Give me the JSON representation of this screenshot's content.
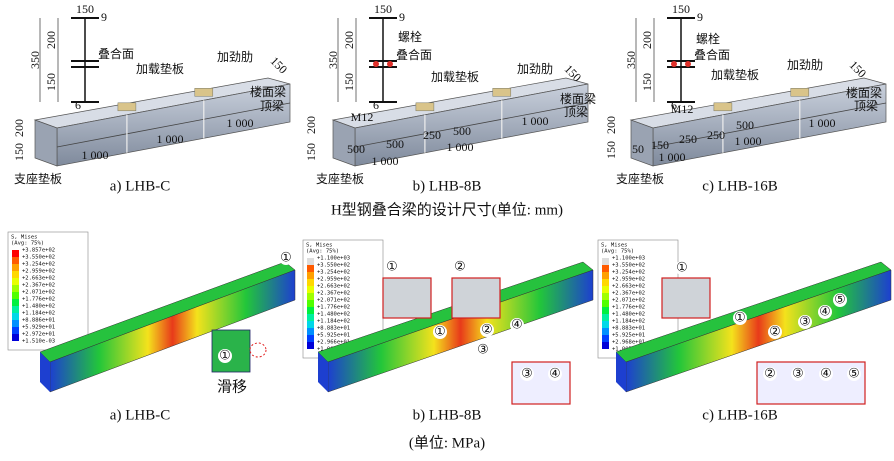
{
  "design_figure": {
    "panels": [
      {
        "label": "a) LHB-C",
        "annotations": [
          "150",
          "9",
          "350",
          "200",
          "150",
          "6",
          "叠合面",
          "加载垫板",
          "加劲肋",
          "150",
          "楼面梁",
          "顶梁",
          "1 000",
          "1 000",
          "1 000",
          "200",
          "150",
          "支座垫板"
        ]
      },
      {
        "label": "b) LHB-8B",
        "annotations": [
          "150",
          "9",
          "350",
          "200",
          "150",
          "6",
          "螺栓",
          "叠合面",
          "加载垫板",
          "加劲肋",
          "150",
          "楼面梁",
          "顶梁",
          "M12",
          "500",
          "500",
          "250",
          "500",
          "1 000",
          "1 000",
          "1 000",
          "200",
          "150",
          "支座垫板"
        ]
      },
      {
        "label": "c) LHB-16B",
        "annotations": [
          "150",
          "9",
          "350",
          "200",
          "150",
          "6",
          "螺栓",
          "叠合面",
          "加载垫板",
          "加劲肋",
          "150",
          "楼面梁",
          "顶梁",
          "M12",
          "50",
          "150",
          "250",
          "250",
          "500",
          "1 000",
          "1 000",
          "1 000",
          "200",
          "150",
          "支座垫板"
        ]
      }
    ],
    "caption": "H型钢叠合梁的设计尺寸(单位: mm)"
  },
  "stress_figure": {
    "panels": [
      {
        "label": "a) LHB-C",
        "legend": {
          "title": "S, Mises",
          "subtitle": "(Avg: 75%)",
          "values": [
            "+3.857e+02",
            "+3.550e+02",
            "+3.254e+02",
            "+2.959e+02",
            "+2.663e+02",
            "+2.367e+02",
            "+2.071e+02",
            "+1.776e+02",
            "+1.480e+02",
            "+1.184e+02",
            "+8.886e+01",
            "+5.929e+01",
            "+2.972e+01",
            "+1.510e-03"
          ]
        },
        "markers": [
          "①",
          "①"
        ],
        "callouts": [
          "滑移"
        ]
      },
      {
        "label": "b) LHB-8B",
        "legend": {
          "title": "S, Mises",
          "subtitle": "(Avg: 75%)",
          "values": [
            "+1.100e+03",
            "+3.550e+02",
            "+3.254e+02",
            "+2.959e+02",
            "+2.663e+02",
            "+2.367e+02",
            "+2.071e+02",
            "+1.776e+02",
            "+1.480e+02",
            "+1.184e+02",
            "+8.883e+01",
            "+5.925e+01",
            "+2.966e+01",
            "+1.003e+00"
          ]
        },
        "markers": [
          "①",
          "②",
          "①",
          "②",
          "③",
          "④",
          "③",
          "④"
        ],
        "callouts": []
      },
      {
        "label": "c) LHB-16B",
        "legend": {
          "title": "S, Mises",
          "subtitle": "(Avg: 75%)",
          "values": [
            "+1.100e+03",
            "+3.550e+02",
            "+3.254e+02",
            "+2.959e+02",
            "+2.663e+02",
            "+2.367e+02",
            "+2.071e+02",
            "+1.776e+02",
            "+1.480e+02",
            "+1.184e+02",
            "+8.883e+01",
            "+5.925e+01",
            "+2.968e+01",
            "+1.003e+00"
          ]
        },
        "markers": [
          "①",
          "①",
          "②",
          "③",
          "④",
          "⑤",
          "②",
          "③",
          "④",
          "⑤"
        ],
        "callouts": []
      }
    ],
    "caption": "(单位: MPa)"
  }
}
